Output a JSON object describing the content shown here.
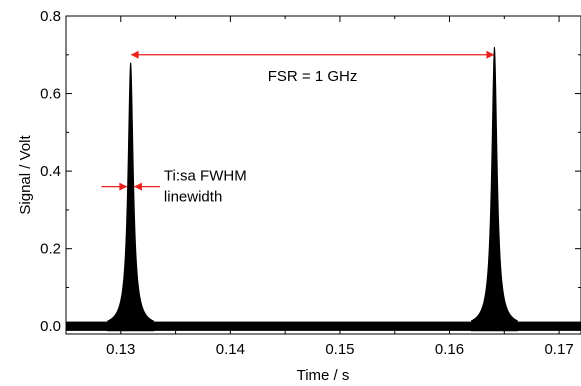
{
  "chart_data": {
    "type": "line",
    "xlabel": "Time  /  s",
    "ylabel": "Signal  /  Volt",
    "xlim": [
      0.125,
      0.172
    ],
    "ylim": [
      -0.02,
      0.8
    ],
    "xticks": [
      0.13,
      0.14,
      0.15,
      0.16,
      0.17
    ],
    "xtick_labels": [
      "0.13",
      "0.14",
      "0.15",
      "0.16",
      "0.17"
    ],
    "yticks": [
      0.0,
      0.2,
      0.4,
      0.6,
      0.8
    ],
    "ytick_labels": [
      "0.0",
      "0.2",
      "0.4",
      "0.6",
      "0.8"
    ],
    "grid": false,
    "line_color": "#000000",
    "annotation_color": "#e8231e",
    "baseline": {
      "center": 0.0,
      "noise_band": [
        -0.012,
        0.012
      ]
    },
    "peaks": [
      {
        "center": 0.1309,
        "height": 0.68,
        "fwhm": 0.0006
      },
      {
        "center": 0.1641,
        "height": 0.72,
        "fwhm": 0.0006
      }
    ],
    "annotations": [
      {
        "name": "fsr",
        "text": "FSR = 1 GHz",
        "x_from": 0.1309,
        "x_to": 0.1641,
        "y": 0.7
      },
      {
        "name": "fwhm",
        "text_line1": "Ti:sa FWHM",
        "text_line2": "linewidth",
        "x_from": 0.1306,
        "x_to": 0.1312,
        "y": 0.36
      }
    ]
  }
}
